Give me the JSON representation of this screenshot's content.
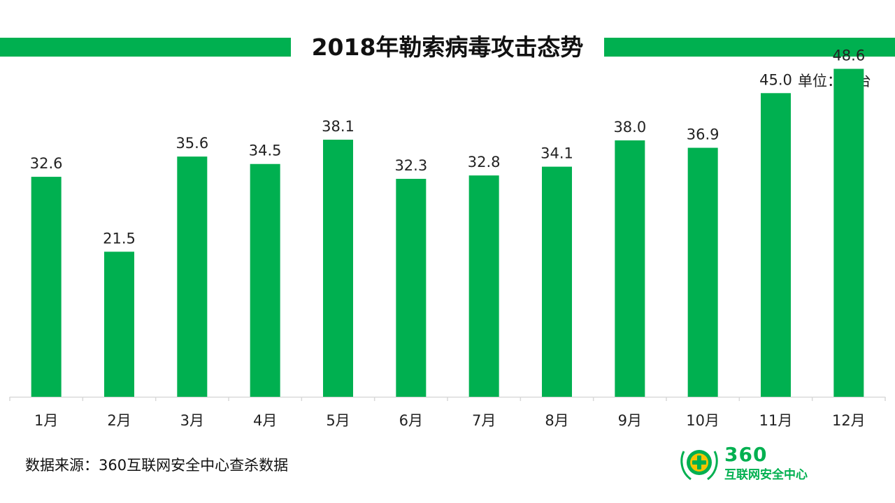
{
  "colors": {
    "accent": "#00b050",
    "axis": "#d9d9d9",
    "logo_yellow": "#f5c400"
  },
  "chart_data": {
    "type": "bar",
    "title": "2018年勒索病毒攻击态势",
    "unit_label": "单位：万台",
    "categories": [
      "1月",
      "2月",
      "3月",
      "4月",
      "5月",
      "6月",
      "7月",
      "8月",
      "9月",
      "10月",
      "11月",
      "12月"
    ],
    "values": [
      32.6,
      21.5,
      35.6,
      34.5,
      38.1,
      32.3,
      32.8,
      34.1,
      38.0,
      36.9,
      45.0,
      48.6
    ],
    "value_labels": [
      "32.6",
      "21.5",
      "35.6",
      "34.5",
      "38.1",
      "32.3",
      "32.8",
      "34.1",
      "38.0",
      "36.9",
      "45.0",
      "48.6"
    ],
    "ylim": [
      0,
      50
    ],
    "grid": false,
    "legend": "none"
  },
  "footer": {
    "source": "数据来源：360互联网安全中心查杀数据"
  },
  "logo": {
    "icon": "360-shield-plus-icon",
    "number": "360",
    "name": "互联网安全中心"
  }
}
